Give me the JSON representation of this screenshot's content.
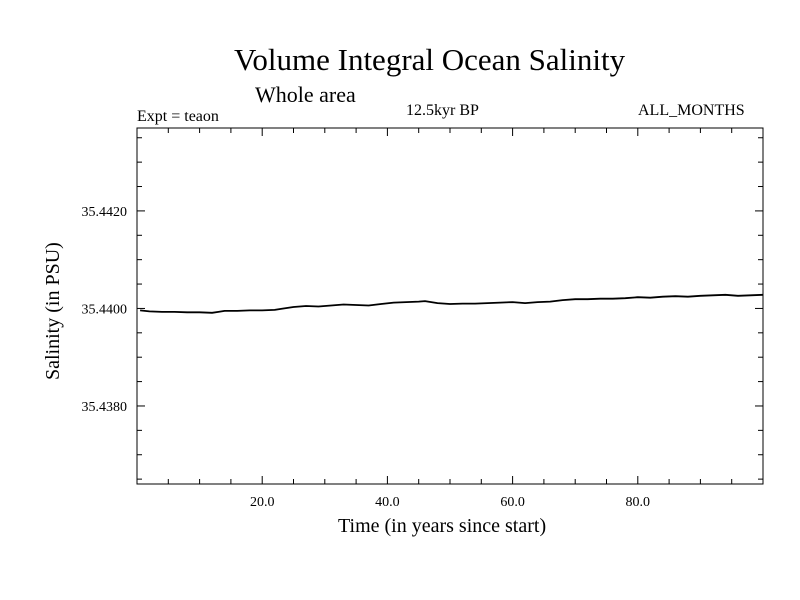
{
  "chart_data": {
    "type": "line",
    "title": "Volume Integral Ocean Salinity",
    "subtitle": "Whole area",
    "left_annotation": "Expt = teaon",
    "center_annotation": "12.5kyr BP",
    "right_annotation": "ALL_MONTHS",
    "xlabel": "Time (in years since start)",
    "ylabel": "Salinity (in PSU)",
    "xlim": [
      0,
      100
    ],
    "ylim": [
      35.4364,
      35.4437
    ],
    "xticks": [
      {
        "v": 20,
        "label": "20.0"
      },
      {
        "v": 40,
        "label": "40.0"
      },
      {
        "v": 60,
        "label": "60.0"
      },
      {
        "v": 80,
        "label": "80.0"
      }
    ],
    "yticks": [
      {
        "v": 35.438,
        "label": "35.4380"
      },
      {
        "v": 35.44,
        "label": "35.4400"
      },
      {
        "v": 35.442,
        "label": "35.4420"
      }
    ],
    "series": [
      {
        "name": "Salinity",
        "color": "#000000",
        "x": [
          0.5,
          2,
          4,
          6,
          8,
          10,
          12,
          13,
          14,
          16,
          18,
          20,
          22,
          23,
          25,
          27,
          29,
          31,
          33,
          35,
          37,
          39,
          41,
          43,
          45,
          46,
          48,
          50,
          52,
          54,
          56,
          58,
          60,
          62,
          64,
          66,
          68,
          70,
          72,
          74,
          76,
          78,
          80,
          82,
          84,
          86,
          88,
          90,
          92,
          94,
          96,
          98,
          100
        ],
        "y": [
          35.43996,
          35.43994,
          35.43993,
          35.43993,
          35.43992,
          35.43992,
          35.43991,
          35.43993,
          35.43995,
          35.43995,
          35.43996,
          35.43996,
          35.43997,
          35.43999,
          35.44003,
          35.44005,
          35.44004,
          35.44006,
          35.44008,
          35.44007,
          35.44006,
          35.44009,
          35.44012,
          35.44013,
          35.44014,
          35.44015,
          35.44011,
          35.44009,
          35.4401,
          35.4401,
          35.44011,
          35.44012,
          35.44013,
          35.44011,
          35.44013,
          35.44014,
          35.44017,
          35.44019,
          35.44019,
          35.4402,
          35.4402,
          35.44021,
          35.44023,
          35.44022,
          35.44024,
          35.44025,
          35.44024,
          35.44026,
          35.44027,
          35.44028,
          35.44026,
          35.44027,
          35.44028
        ]
      }
    ]
  }
}
